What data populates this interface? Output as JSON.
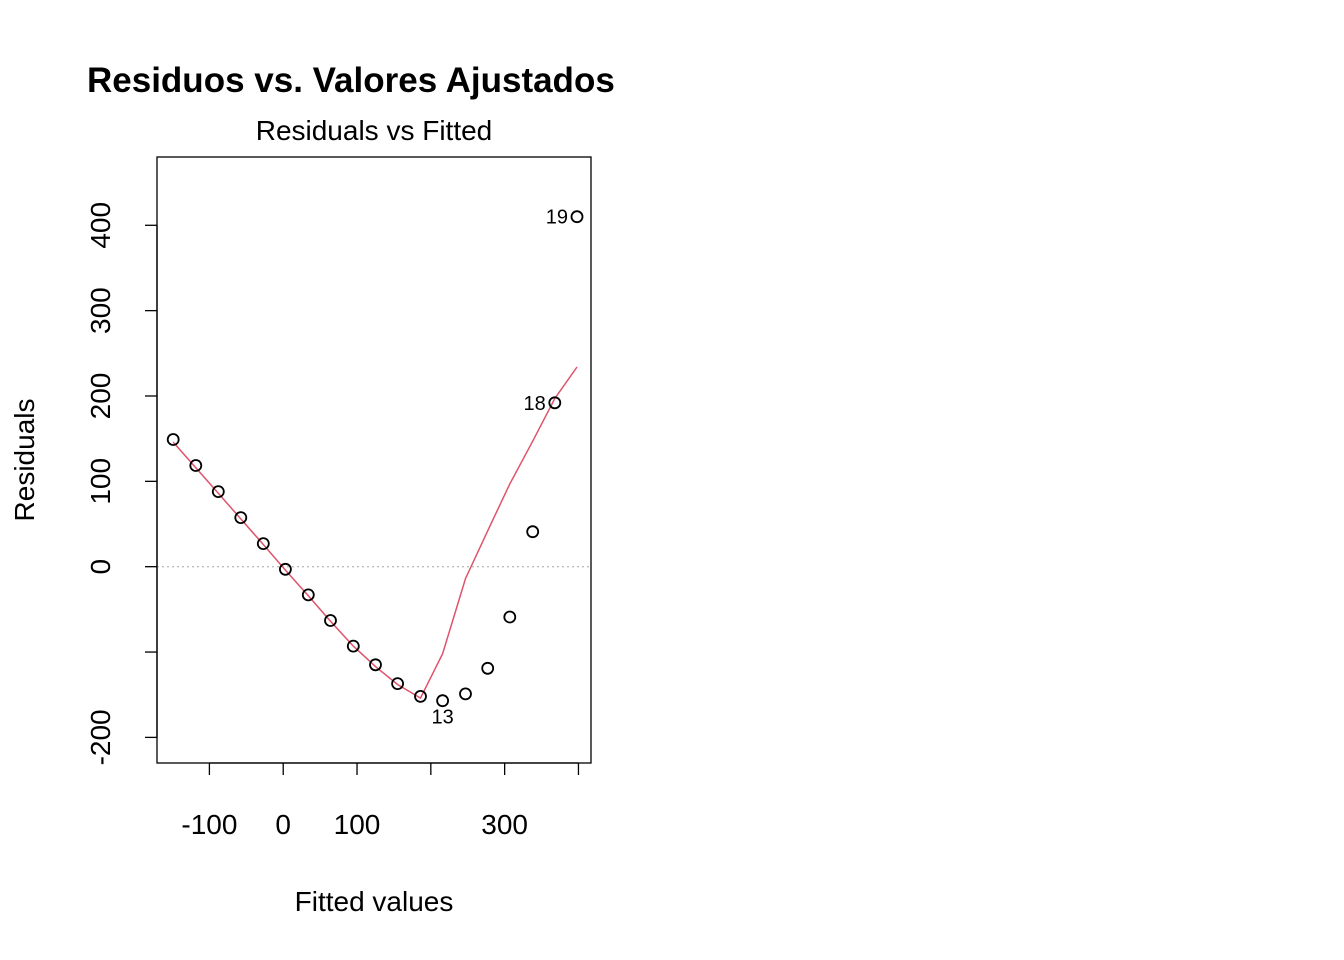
{
  "page": {
    "title": "Residuos vs. Valores Ajustados"
  },
  "chart_data": {
    "type": "scatter",
    "title": "Residuals vs Fitted",
    "xlabel": "Fitted values",
    "ylabel": "Residuals",
    "xlim": [
      -171,
      417
    ],
    "ylim": [
      -230,
      480
    ],
    "xticks": [
      -100,
      0,
      100,
      200,
      300,
      400
    ],
    "xtick_labels": [
      "-100",
      "0",
      "100",
      "",
      "300",
      ""
    ],
    "yticks": [
      -200,
      -100,
      0,
      100,
      200,
      300,
      400
    ],
    "ytick_labels": [
      "-200",
      "",
      "0",
      "100",
      "200",
      "300",
      "400"
    ],
    "grid": false,
    "reference_line": {
      "y": 0,
      "style": "dotted",
      "color": "#bebebe"
    },
    "points": {
      "x": [
        -149,
        -118.5,
        -88,
        -57.5,
        -27,
        3,
        34,
        64,
        95,
        125,
        155,
        186,
        216,
        247,
        277,
        307,
        338,
        368,
        398
      ],
      "y": [
        149,
        118.5,
        88,
        57.5,
        27,
        -3,
        -33,
        -63,
        -93,
        -115,
        -137,
        -152,
        -157,
        -149,
        -119,
        -59,
        41,
        192,
        410
      ],
      "labels": [
        "",
        "",
        "",
        "",
        "",
        "",
        "",
        "",
        "",
        "",
        "",
        "",
        "13",
        "",
        "",
        "",
        "",
        "18",
        "19"
      ]
    },
    "smoother": {
      "color": "#DF536B",
      "x": [
        -149,
        -118.5,
        -88,
        -57.5,
        -27,
        3,
        34,
        64,
        95,
        125,
        155,
        186,
        216,
        247,
        277,
        307,
        338,
        368,
        398
      ],
      "y": [
        146,
        116,
        86,
        56,
        26,
        -4,
        -34,
        -64,
        -93,
        -117,
        -138,
        -154,
        -102,
        -14,
        42,
        97,
        147,
        197,
        234
      ]
    }
  }
}
